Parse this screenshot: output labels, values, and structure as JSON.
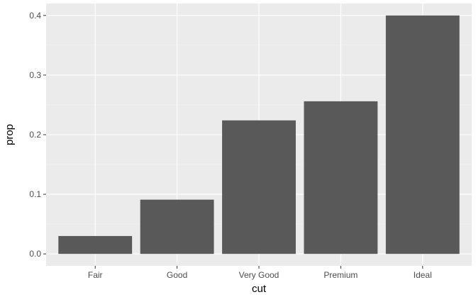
{
  "chart_data": {
    "type": "bar",
    "categories": [
      "Fair",
      "Good",
      "Very Good",
      "Premium",
      "Ideal"
    ],
    "values": [
      0.03,
      0.091,
      0.224,
      0.256,
      0.4
    ],
    "xlabel": "cut",
    "ylabel": "prop",
    "ylim": [
      -0.02,
      0.42
    ],
    "yticks": [
      0.0,
      0.1,
      0.2,
      0.3,
      0.4
    ],
    "ytick_labels": [
      "0.0",
      "0.1",
      "0.2",
      "0.3",
      "0.4"
    ],
    "grid": true,
    "bar_color": "#595959",
    "panel_color": "#ebebeb",
    "legend": "none"
  }
}
